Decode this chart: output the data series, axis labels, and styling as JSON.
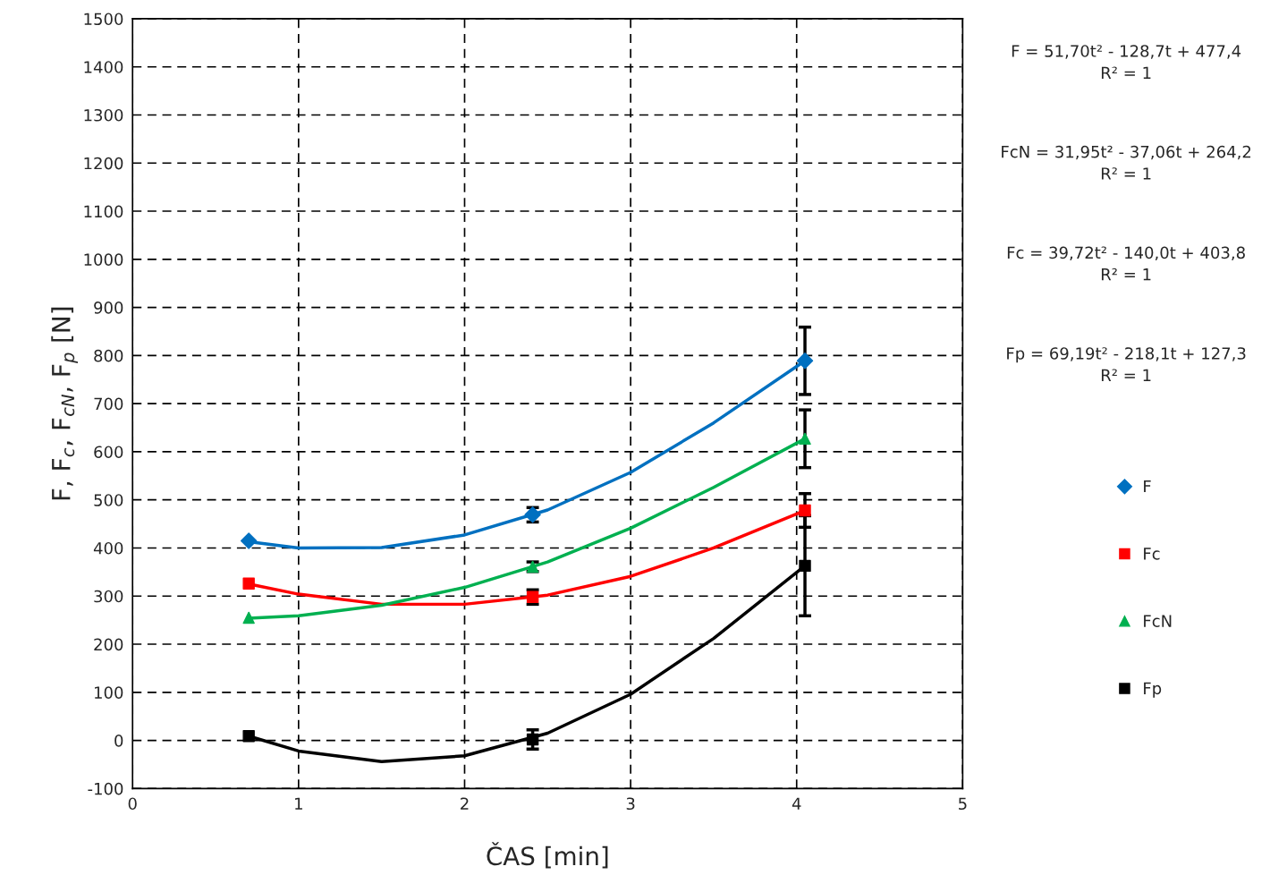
{
  "chart_data": {
    "type": "scatter",
    "xlabel": "ČAS [min]",
    "ylabel": "F, F$_{c}$, F$_{cN}$, F$_{p}$ [N]",
    "x": [
      0.7,
      2.41,
      4.05
    ],
    "series": [
      {
        "name": "F",
        "color": "#0070c0",
        "marker": "diamond",
        "values": [
          415,
          469,
          789
        ],
        "errors": [
          null,
          15,
          70
        ]
      },
      {
        "name": "Fc",
        "color": "#ff0000",
        "marker": "square",
        "values": [
          326,
          298,
          478
        ],
        "errors": [
          null,
          15,
          35
        ]
      },
      {
        "name": "FcN",
        "color": "#00b050",
        "marker": "triangle",
        "values": [
          255,
          361,
          627
        ],
        "errors": [
          null,
          10,
          60
        ]
      },
      {
        "name": "Fp",
        "color": "#000000",
        "marker": "square",
        "values": [
          9,
          2,
          363
        ],
        "errors": [
          null,
          20,
          104
        ]
      },
      {
        "type": "line",
        "color": "#0070c0",
        "x": [
          0.7,
          1.0,
          1.5,
          2.0,
          2.5,
          3.0,
          3.5,
          4.05
        ],
        "values": [
          413,
          400,
          401,
          427,
          479,
          557,
          660,
          789
        ]
      },
      {
        "type": "line",
        "color": "#ff0000",
        "x": [
          0.7,
          1.0,
          1.5,
          2.0,
          2.5,
          3.0,
          3.5,
          4.05
        ],
        "values": [
          325,
          304,
          283,
          283,
          302,
          341,
          400,
          478
        ]
      },
      {
        "type": "line",
        "color": "#00b050",
        "x": [
          0.7,
          1.0,
          1.5,
          2.0,
          2.5,
          3.0,
          3.5,
          4.05
        ],
        "values": [
          254,
          259,
          281,
          318,
          371,
          441,
          526,
          627
        ]
      },
      {
        "type": "line",
        "color": "#000000",
        "x": [
          0.7,
          1.0,
          1.5,
          2.0,
          2.5,
          3.0,
          3.5,
          4.05
        ],
        "values": [
          9,
          -22,
          -44,
          -32,
          15,
          96,
          212,
          363
        ]
      }
    ],
    "xlim": [
      0,
      5
    ],
    "xticks": [
      0,
      1,
      2,
      3,
      4,
      5
    ],
    "ylim": [
      -100,
      1500
    ],
    "yticks": [
      -100,
      0,
      100,
      200,
      300,
      400,
      500,
      600,
      700,
      800,
      900,
      1000,
      1100,
      1200,
      1300,
      1400,
      1500
    ],
    "grid": true,
    "legend": "right",
    "annotations": [
      "F = 51,70t² - 128,7t + 477,4\nR² = 1",
      "FcN = 31,95t² - 37,06t + 264,2\nR² = 1",
      "Fc = 39,72t² - 140,0t + 403,8\nR² = 1",
      "Fp = 69,19t² - 218,1t + 127,3\nR² = 1"
    ]
  }
}
